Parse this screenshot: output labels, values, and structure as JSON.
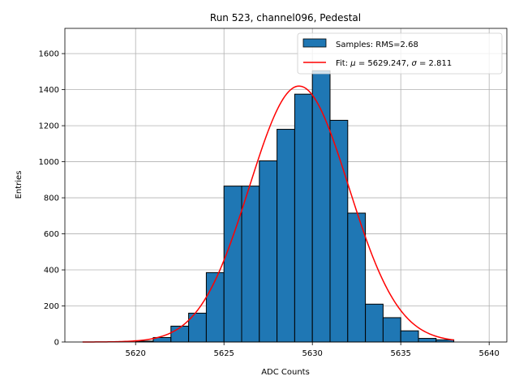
{
  "chart_data": {
    "type": "bar",
    "title": "Run 523, channel096, Pedestal",
    "xlabel": "ADC Counts",
    "ylabel": "Entries",
    "xlim": [
      5616,
      5641
    ],
    "ylim": [
      0,
      1740
    ],
    "xticks": [
      5620,
      5625,
      5630,
      5635,
      5640
    ],
    "yticks": [
      0,
      200,
      400,
      600,
      800,
      1000,
      1200,
      1400,
      1600
    ],
    "grid": true,
    "legend_position": "top-right",
    "histogram": {
      "name": "Samples: RMS=2.68",
      "color": "#1f77b4",
      "bins": [
        {
          "x0": 5620,
          "x1": 5621,
          "count": 5
        },
        {
          "x0": 5621,
          "x1": 5622,
          "count": 25
        },
        {
          "x0": 5622,
          "x1": 5623,
          "count": 88
        },
        {
          "x0": 5623,
          "x1": 5624,
          "count": 160
        },
        {
          "x0": 5624,
          "x1": 5625,
          "count": 385
        },
        {
          "x0": 5625,
          "x1": 5626,
          "count": 865
        },
        {
          "x0": 5626,
          "x1": 5627,
          "count": 865
        },
        {
          "x0": 5627,
          "x1": 5628,
          "count": 1005
        },
        {
          "x0": 5628,
          "x1": 5629,
          "count": 1180
        },
        {
          "x0": 5629,
          "x1": 5630,
          "count": 1375
        },
        {
          "x0": 5630,
          "x1": 5631,
          "count": 1505
        },
        {
          "x0": 5631,
          "x1": 5632,
          "count": 1230
        },
        {
          "x0": 5632,
          "x1": 5633,
          "count": 715
        },
        {
          "x0": 5633,
          "x1": 5634,
          "count": 210
        },
        {
          "x0": 5634,
          "x1": 5635,
          "count": 135
        },
        {
          "x0": 5635,
          "x1": 5636,
          "count": 62
        },
        {
          "x0": 5636,
          "x1": 5637,
          "count": 20
        },
        {
          "x0": 5637,
          "x1": 5638,
          "count": 12
        }
      ]
    },
    "fit": {
      "name": "Fit: μ = 5629.247, σ = 2.811",
      "label_prefix": "Fit: ",
      "label_mu": "μ",
      "label_mid": " = 5629.247, ",
      "label_sigma": "σ",
      "label_end": " = 2.811",
      "color": "#ff0000",
      "mu": 5629.247,
      "sigma": 2.811,
      "amplitude": 1420,
      "x_range": [
        5617,
        5638
      ]
    }
  }
}
